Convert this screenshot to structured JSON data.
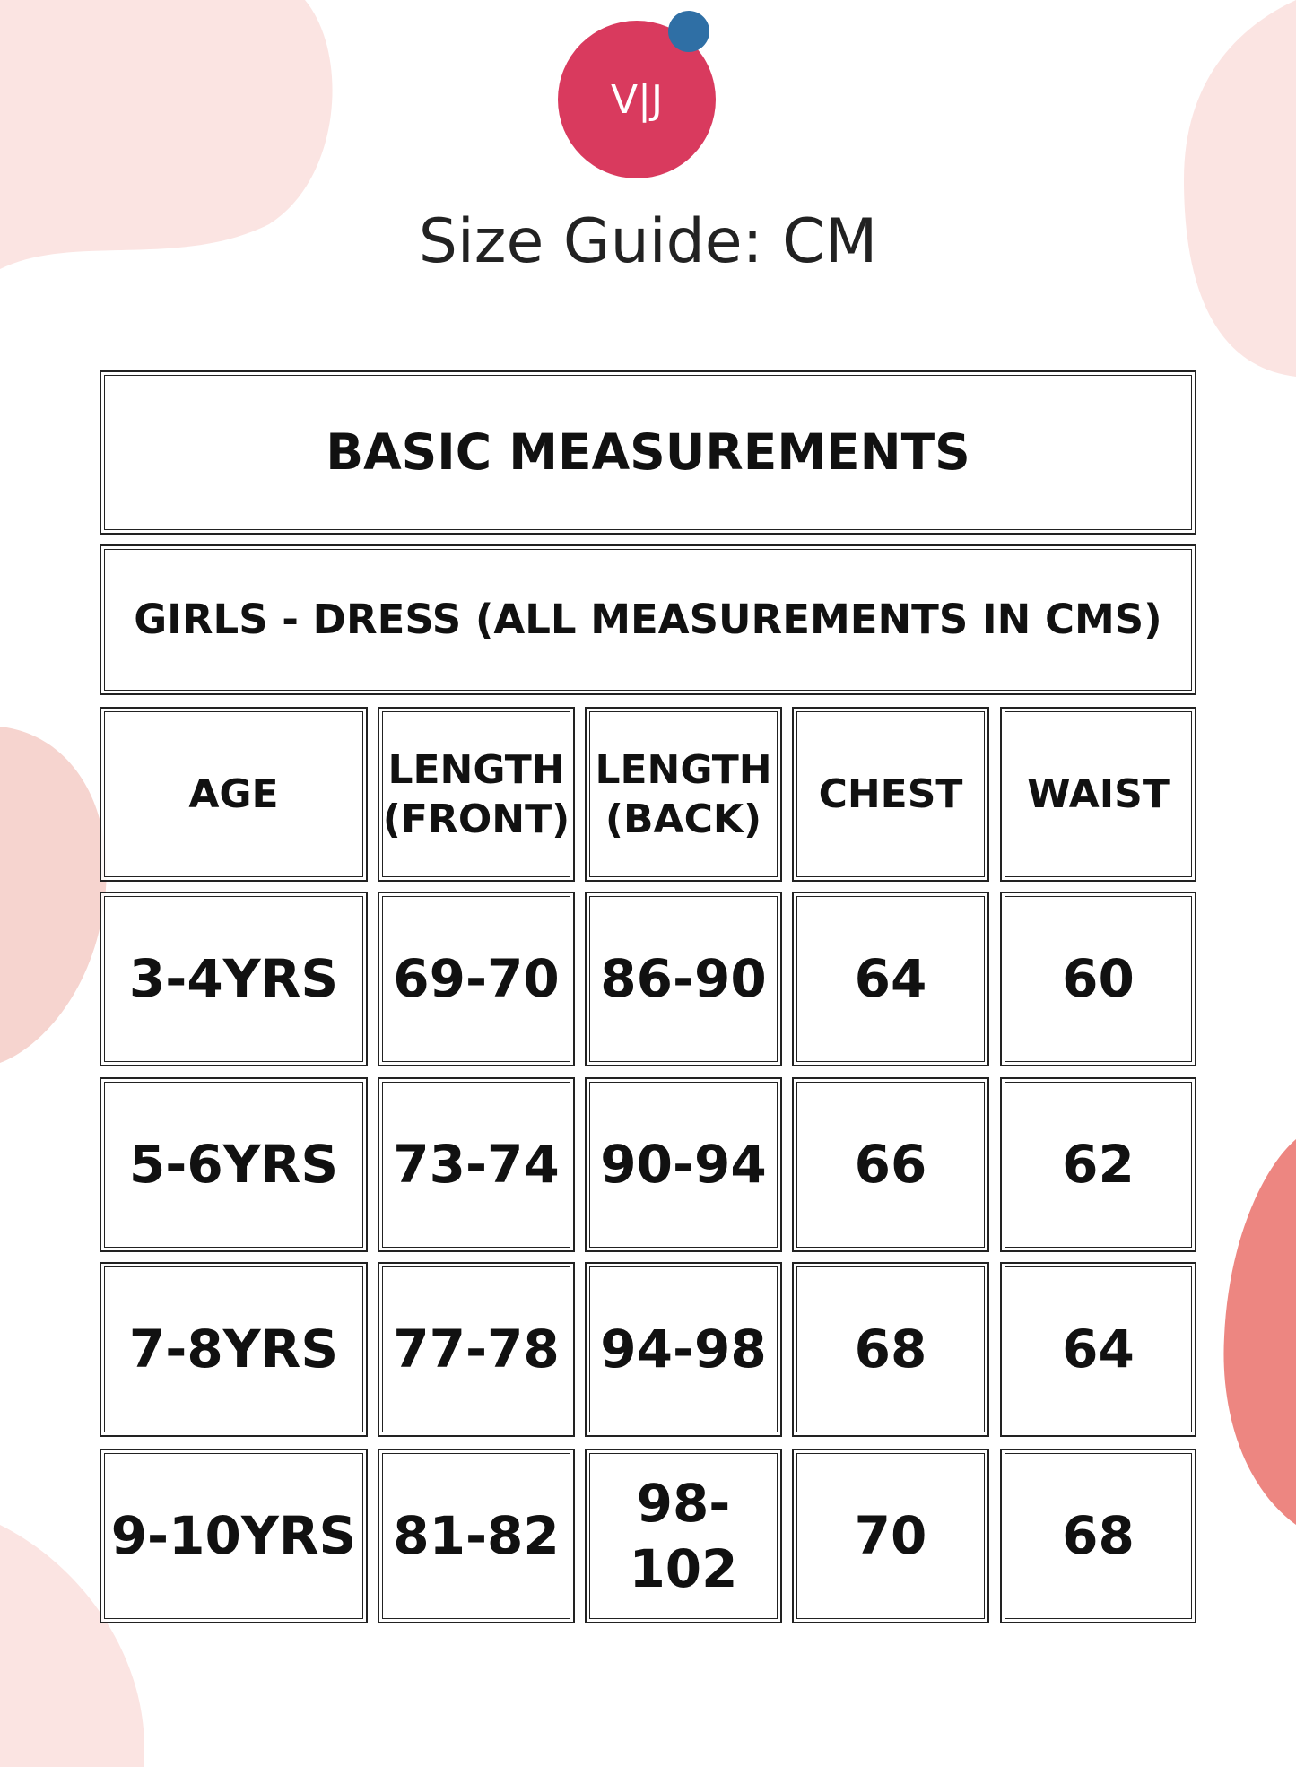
{
  "header": {
    "logo": "V|J",
    "title": "Size Guide: CM"
  },
  "table": {
    "title": "BASIC MEASUREMENTS",
    "subtitle": "GIRLS - DRESS (ALL MEASUREMENTS IN CMS)",
    "columns": [
      "AGE",
      "LENGTH (FRONT)",
      "LENGTH (BACK)",
      "CHEST",
      "WAIST"
    ],
    "rows": [
      [
        "3-4YRS",
        "69-70",
        "86-90",
        "64",
        "60"
      ],
      [
        "5-6YRS",
        "73-74",
        "90-94",
        "66",
        "62"
      ],
      [
        "7-8YRS",
        "77-78",
        "94-98",
        "68",
        "64"
      ],
      [
        "9-10YRS",
        "81-82",
        "98-102",
        "70",
        "68"
      ]
    ]
  }
}
